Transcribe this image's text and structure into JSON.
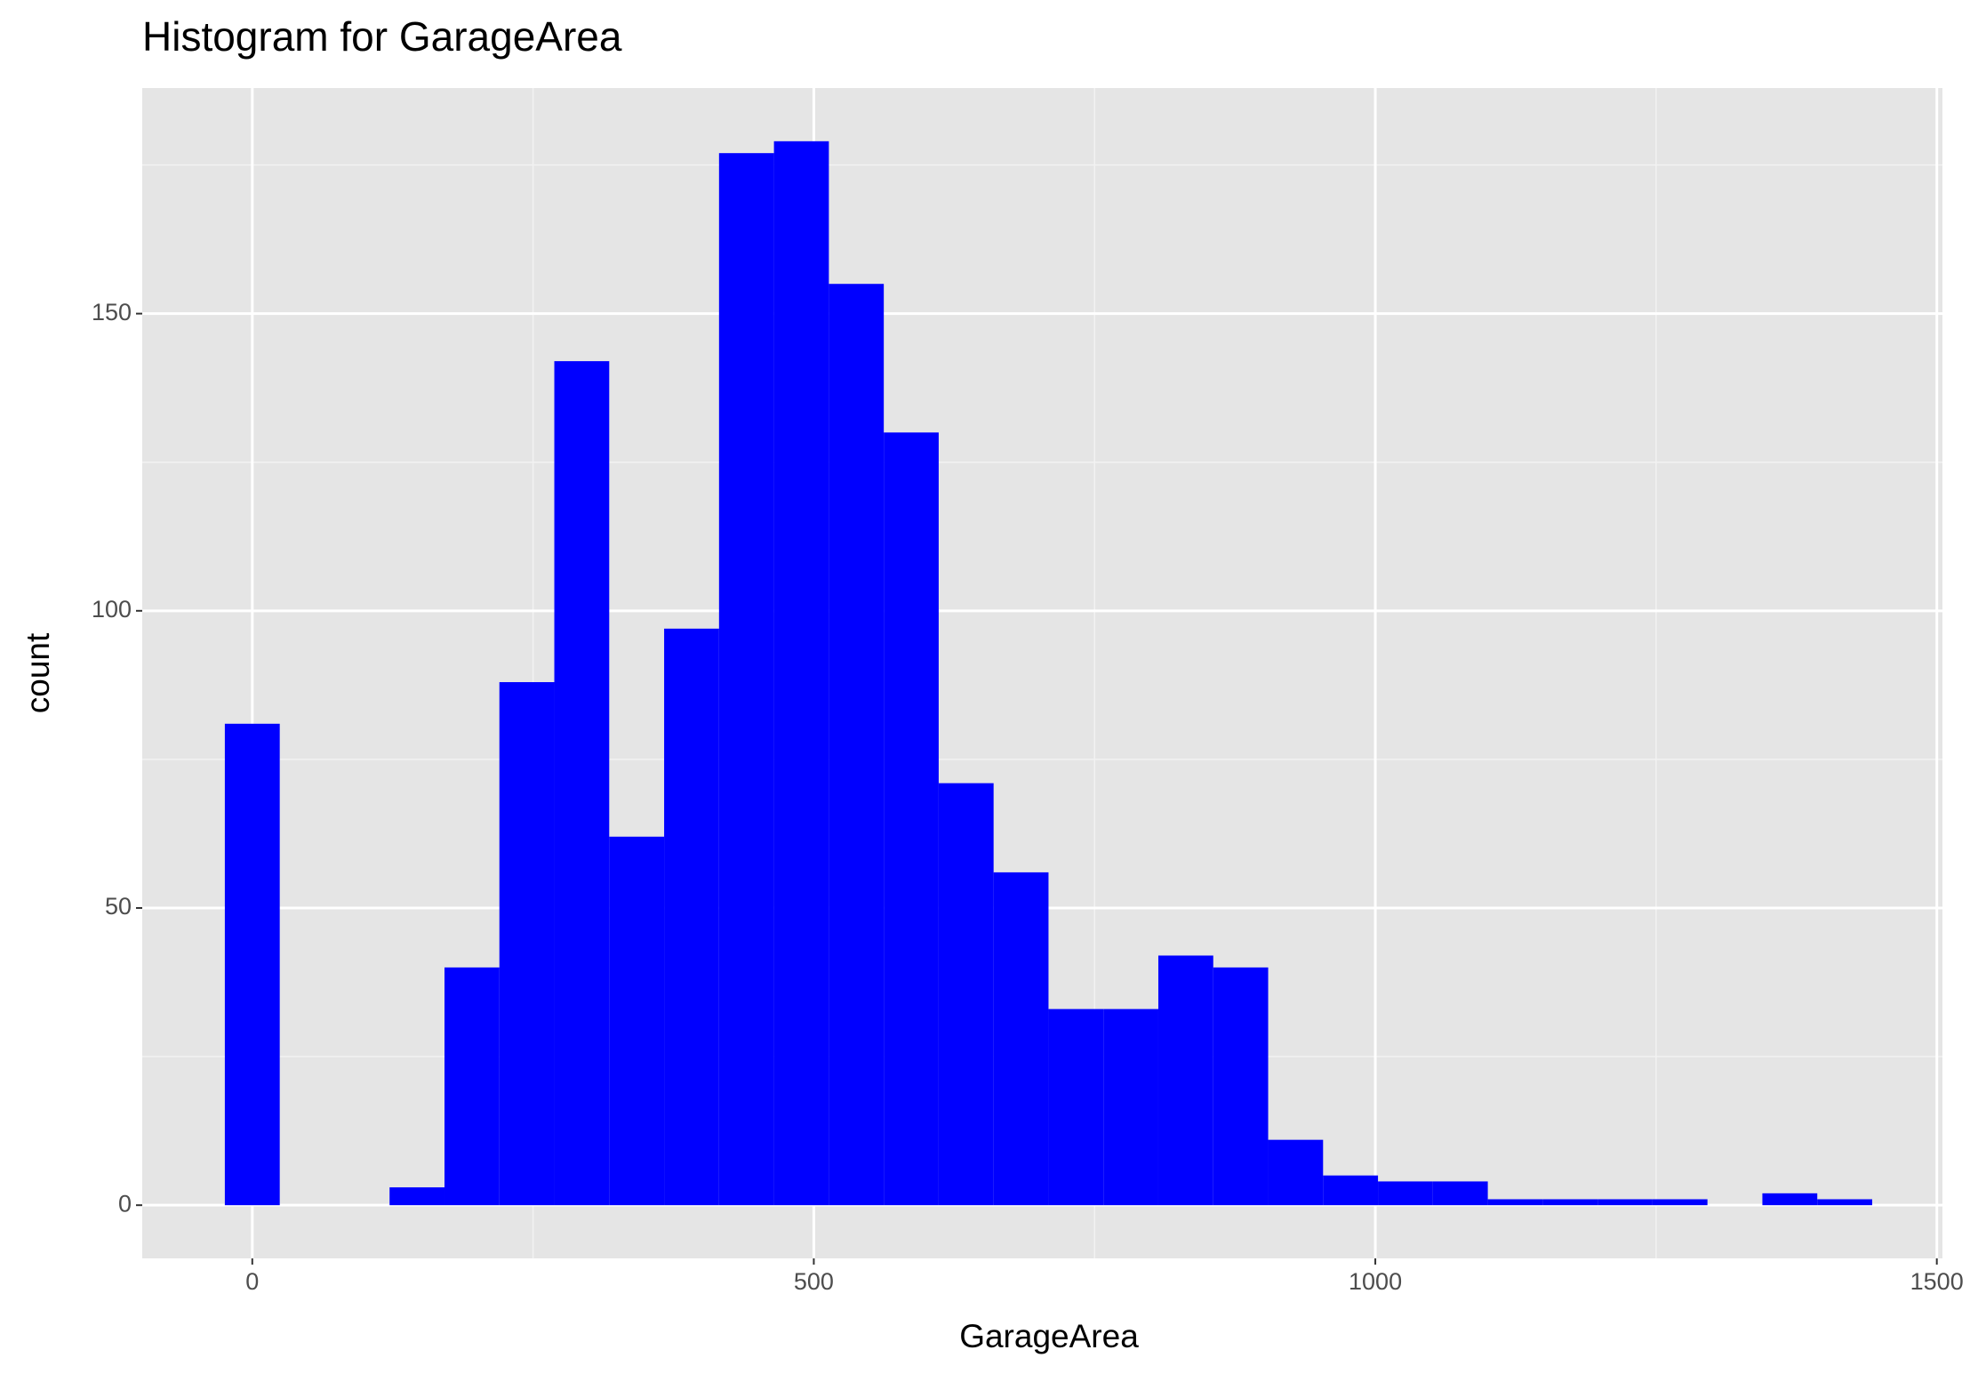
{
  "chart_data": {
    "type": "histogram",
    "title": "Histogram for GarageArea",
    "x_label": "GarageArea",
    "y_label": "count",
    "color": "#0000ff",
    "bins": [
      -24.45,
      24.45,
      73.34,
      122.24,
      171.14,
      220.03,
      268.93,
      317.83,
      366.72,
      415.62,
      464.52,
      513.41,
      562.31,
      611.21,
      660.1,
      709,
      757.9,
      806.79,
      855.69,
      904.59,
      953.48,
      1002.38,
      1051.28,
      1100.17,
      1149.07,
      1197.97,
      1246.86,
      1295.76,
      1344.66,
      1393.55,
      1442.45
    ],
    "values": [
      81,
      0,
      0,
      3,
      40,
      88,
      142,
      62,
      97,
      177,
      179,
      155,
      130,
      71,
      56,
      33,
      33,
      42,
      40,
      11,
      5,
      4,
      4,
      1,
      1,
      1,
      1,
      0,
      2,
      1
    ],
    "xlim": [
      -98,
      1505
    ],
    "xticks": [
      0,
      500,
      1000,
      1500
    ],
    "ylim": [
      -8.95,
      187.95
    ],
    "yticks": [
      0,
      50,
      100,
      150
    ],
    "grid": true
  }
}
